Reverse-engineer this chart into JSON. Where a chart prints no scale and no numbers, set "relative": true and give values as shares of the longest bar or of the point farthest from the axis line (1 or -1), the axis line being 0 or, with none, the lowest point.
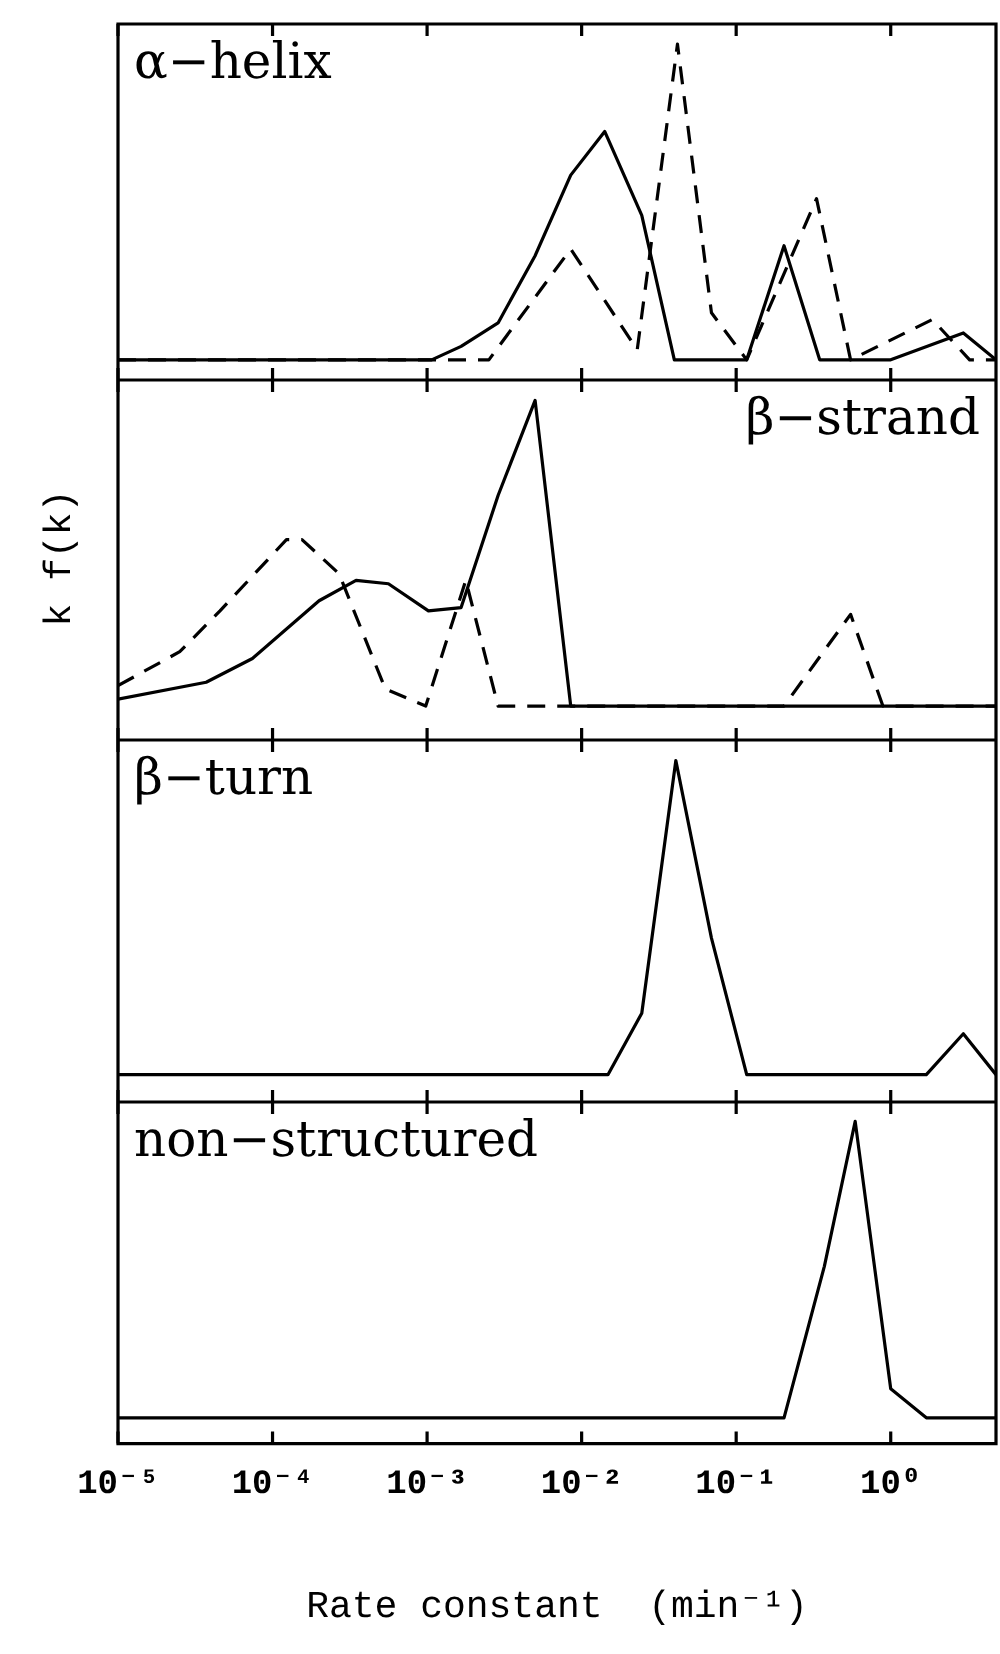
{
  "chart_data": [
    {
      "type": "line",
      "title": "α−helix",
      "relative": true,
      "log": "x",
      "xlim": [
        1e-05,
        4.8
      ],
      "tick_labels": false,
      "legend": false,
      "grid": false,
      "xticks": [
        {
          "value": 1e-05,
          "label": null
        },
        {
          "value": 0.0001,
          "label": null
        },
        {
          "value": 0.001,
          "label": null
        },
        {
          "value": 0.01,
          "label": null
        },
        {
          "value": 0.1,
          "label": null
        },
        {
          "value": 1,
          "label": null
        }
      ],
      "series": [
        {
          "color": "#000000",
          "line_style": "solid",
          "x": [
            1e-05,
            0.00107,
            0.00166,
            0.00288,
            0.005,
            0.0085,
            0.0141,
            0.0245,
            0.0398,
            0.117,
            0.204,
            0.347,
            1,
            2.95,
            4.8
          ],
          "values": [
            0.06,
            0.06,
            0.1,
            0.17,
            0.37,
            0.61,
            0.74,
            0.49,
            0.06,
            0.06,
            0.4,
            0.06,
            0.06,
            0.14,
            0.06
          ]
        },
        {
          "color": "#000000",
          "line_style": "dashed",
          "x": [
            1e-05,
            0.00251,
            0.0085,
            0.0229,
            0.0417,
            0.0692,
            0.117,
            0.331,
            0.55,
            1.86,
            3.24,
            4.8
          ],
          "values": [
            0.06,
            0.06,
            0.39,
            0.09,
            1,
            0.2,
            0.06,
            0.54,
            0.06,
            0.18,
            0.06,
            0.06
          ]
        }
      ]
    },
    {
      "type": "line",
      "title": "β−strand",
      "ylabel": "k f(k)",
      "relative": true,
      "log": "x",
      "xlim": [
        1e-05,
        4.8
      ],
      "tick_labels": false,
      "legend": false,
      "grid": false,
      "xticks": [
        {
          "value": 1e-05,
          "label": null
        },
        {
          "value": 0.0001,
          "label": null
        },
        {
          "value": 0.001,
          "label": null
        },
        {
          "value": 0.01,
          "label": null
        },
        {
          "value": 0.1,
          "label": null
        },
        {
          "value": 1,
          "label": null
        }
      ],
      "series": [
        {
          "color": "#000000",
          "line_style": "solid",
          "x": [
            1e-05,
            3.72e-05,
            7.41e-05,
            0.0002,
            0.000347,
            0.000562,
            0.00102,
            0.00166,
            0.00288,
            0.005,
            0.0085,
            4.8
          ],
          "values": [
            0.12,
            0.17,
            0.24,
            0.41,
            0.47,
            0.46,
            0.38,
            0.39,
            0.72,
            1,
            0.1,
            0.1
          ]
        },
        {
          "color": "#000000",
          "line_style": "dashed",
          "x": [
            1e-05,
            2.51e-05,
            4.57e-05,
            0.000123,
            0.000155,
            0.000269,
            0.000537,
            0.00098,
            0.00178,
            0.00288,
            0.204,
            0.55,
            0.89,
            4.8
          ],
          "values": [
            0.16,
            0.26,
            0.38,
            0.59,
            0.59,
            0.49,
            0.15,
            0.1,
            0.47,
            0.1,
            0.1,
            0.37,
            0.1,
            0.1
          ]
        }
      ]
    },
    {
      "type": "line",
      "title": "β−turn",
      "relative": true,
      "log": "x",
      "xlim": [
        1e-05,
        4.8
      ],
      "tick_labels": false,
      "legend": false,
      "grid": false,
      "xticks": [
        {
          "value": 1e-05,
          "label": null
        },
        {
          "value": 0.0001,
          "label": null
        },
        {
          "value": 0.001,
          "label": null
        },
        {
          "value": 0.01,
          "label": null
        },
        {
          "value": 0.1,
          "label": null
        },
        {
          "value": 1,
          "label": null
        }
      ],
      "series": [
        {
          "color": "#000000",
          "line_style": "solid",
          "x": [
            1e-05,
            0.0148,
            0.0245,
            0.0407,
            0.0692,
            0.117,
            1.7,
            2.95,
            4.8
          ],
          "values": [
            0.08,
            0.08,
            0.26,
            1,
            0.48,
            0.08,
            0.08,
            0.2,
            0.08
          ]
        }
      ]
    },
    {
      "type": "line",
      "title": "non−structured",
      "xlabel": "Rate constant  (min⁻¹)",
      "relative": true,
      "log": "x",
      "xlim": [
        1e-05,
        4.8
      ],
      "tick_labels": "x",
      "legend": false,
      "grid": false,
      "xticks": [
        {
          "value": 1e-05,
          "label": "10⁻⁵"
        },
        {
          "value": 0.0001,
          "label": "10⁻⁴"
        },
        {
          "value": 0.001,
          "label": "10⁻³"
        },
        {
          "value": 0.01,
          "label": "10⁻²"
        },
        {
          "value": 0.1,
          "label": "10⁻¹"
        },
        {
          "value": 1,
          "label": "10⁰"
        }
      ],
      "series": [
        {
          "color": "#000000",
          "line_style": "solid",
          "x": [
            1e-05,
            0.204,
            0.372,
            0.589,
            1,
            1.7,
            4.8
          ],
          "values": [
            0.08,
            0.08,
            0.55,
            1,
            0.17,
            0.08,
            0.08
          ]
        }
      ]
    }
  ]
}
